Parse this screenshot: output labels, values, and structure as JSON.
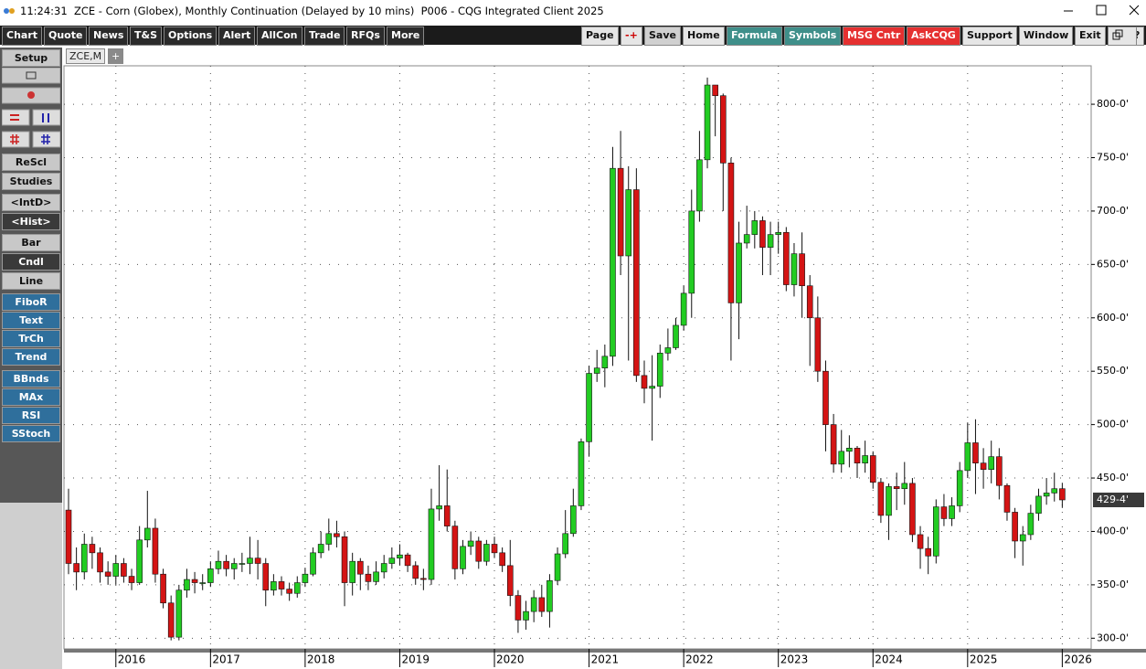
{
  "title_bar": {
    "title": "11:24:31  ZCE - Corn (Globex), Monthly Continuation (Delayed by 10 mins)  P006 - CQG Integrated Client 2025"
  },
  "toolbar": {
    "left": [
      "Chart",
      "Quote",
      "News",
      "T&S",
      "Options",
      "Alert",
      "AllCon",
      "Trade",
      "RFQs",
      "More"
    ],
    "right": [
      {
        "label": "Page",
        "style": "light"
      },
      {
        "label": "-+",
        "style": "light-red"
      },
      {
        "label": "Save",
        "style": "plain"
      },
      {
        "label": "Home",
        "style": "light"
      },
      {
        "label": "Formula",
        "style": "teal"
      },
      {
        "label": "Symbols",
        "style": "teal"
      },
      {
        "label": "MSG Cntr",
        "style": "alert"
      },
      {
        "label": "AskCQG",
        "style": "alert"
      },
      {
        "label": "Support",
        "style": "light"
      },
      {
        "label": "Window",
        "style": "light"
      },
      {
        "label": "Exit",
        "style": "light"
      },
      {
        "label": "?",
        "style": "light"
      }
    ]
  },
  "side_panel": {
    "setup": "Setup",
    "buttons": [
      {
        "label": "ReScl",
        "style": "gray"
      },
      {
        "label": "Studies",
        "style": "gray"
      },
      {
        "label": "<IntD>",
        "style": "gray"
      },
      {
        "label": "<Hist>",
        "style": "dark"
      },
      {
        "label": "Bar",
        "style": "gray"
      },
      {
        "label": "Cndl",
        "style": "dark"
      },
      {
        "label": "Line",
        "style": "gray"
      },
      {
        "label": "FiboR",
        "style": "blue"
      },
      {
        "label": "Text",
        "style": "blue"
      },
      {
        "label": "TrCh",
        "style": "blue"
      },
      {
        "label": "Trend",
        "style": "blue"
      },
      {
        "label": "BBnds",
        "style": "blue"
      },
      {
        "label": "MAx",
        "style": "blue"
      },
      {
        "label": "RSI",
        "style": "blue"
      },
      {
        "label": "SStoch",
        "style": "blue"
      }
    ]
  },
  "tabs": [
    "ZCE,M",
    "+"
  ],
  "chart_data": {
    "type": "candlestick",
    "up_color": "#22cc22",
    "down_color": "#d41414",
    "grid": true,
    "x": [
      "2015-07",
      "2015-08",
      "2015-09",
      "2015-10",
      "2015-11",
      "2015-12",
      "2016-01",
      "2016-02",
      "2016-03",
      "2016-04",
      "2016-05",
      "2016-06",
      "2016-07",
      "2016-08",
      "2016-09",
      "2016-10",
      "2016-11",
      "2016-12",
      "2017-01",
      "2017-02",
      "2017-03",
      "2017-04",
      "2017-05",
      "2017-06",
      "2017-07",
      "2017-08",
      "2017-09",
      "2017-10",
      "2017-11",
      "2017-12",
      "2018-01",
      "2018-02",
      "2018-03",
      "2018-04",
      "2018-05",
      "2018-06",
      "2018-07",
      "2018-08",
      "2018-09",
      "2018-10",
      "2018-11",
      "2018-12",
      "2019-01",
      "2019-02",
      "2019-03",
      "2019-04",
      "2019-05",
      "2019-06",
      "2019-07",
      "2019-08",
      "2019-09",
      "2019-10",
      "2019-11",
      "2019-12",
      "2020-01",
      "2020-02",
      "2020-03",
      "2020-04",
      "2020-05",
      "2020-06",
      "2020-07",
      "2020-08",
      "2020-09",
      "2020-10",
      "2020-11",
      "2020-12",
      "2021-01",
      "2021-02",
      "2021-03",
      "2021-04",
      "2021-05",
      "2021-06",
      "2021-07",
      "2021-08",
      "2021-09",
      "2021-10",
      "2021-11",
      "2021-12",
      "2022-01",
      "2022-02",
      "2022-03",
      "2022-04",
      "2022-05",
      "2022-06",
      "2022-07",
      "2022-08",
      "2022-09",
      "2022-10",
      "2022-11",
      "2022-12",
      "2023-01",
      "2023-02",
      "2023-03",
      "2023-04",
      "2023-05",
      "2023-06",
      "2023-07",
      "2023-08",
      "2023-09",
      "2023-10",
      "2023-11",
      "2023-12",
      "2024-01",
      "2024-02",
      "2024-03",
      "2024-04",
      "2024-05",
      "2024-06",
      "2024-07",
      "2024-08",
      "2024-09",
      "2024-10",
      "2024-11",
      "2024-12",
      "2025-01",
      "2025-02",
      "2025-03",
      "2025-04",
      "2025-05",
      "2025-06",
      "2025-07",
      "2025-08",
      "2025-09",
      "2025-10",
      "2025-11",
      "2025-12",
      "2026-01"
    ],
    "open": [
      420,
      370,
      362,
      388,
      380,
      362,
      358,
      370,
      358,
      352,
      392,
      403,
      360,
      333,
      301,
      345,
      355,
      352,
      352,
      365,
      372,
      365,
      370,
      370,
      375,
      370,
      345,
      353,
      346,
      342,
      352,
      360,
      380,
      388,
      398,
      395,
      352,
      372,
      360,
      353,
      362,
      370,
      375,
      378,
      368,
      356,
      355,
      421,
      424,
      405,
      365,
      386,
      391,
      372,
      388,
      380,
      368,
      340,
      317,
      325,
      338,
      325,
      354,
      379,
      398,
      424,
      484,
      548,
      553,
      564,
      740,
      658,
      720,
      546,
      534,
      536,
      567,
      572,
      593,
      623,
      700,
      748,
      818,
      808,
      745,
      614,
      670,
      678,
      691,
      666,
      678,
      680,
      631,
      660,
      630,
      600,
      550,
      500,
      463,
      475,
      478,
      464,
      471,
      446,
      415,
      442,
      440,
      445,
      397,
      384,
      377,
      423,
      412,
      424,
      457,
      483,
      464,
      458,
      470,
      443,
      418,
      391,
      397,
      417,
      433,
      436,
      440
    ],
    "high": [
      440,
      385,
      398,
      395,
      385,
      372,
      378,
      375,
      365,
      405,
      438,
      412,
      365,
      340,
      350,
      365,
      362,
      360,
      372,
      382,
      378,
      375,
      380,
      395,
      392,
      375,
      360,
      358,
      352,
      358,
      366,
      385,
      400,
      412,
      410,
      400,
      380,
      375,
      368,
      372,
      378,
      385,
      388,
      380,
      372,
      365,
      440,
      462,
      458,
      410,
      392,
      400,
      395,
      392,
      395,
      385,
      392,
      345,
      335,
      345,
      350,
      360,
      385,
      420,
      440,
      487,
      555,
      570,
      575,
      760,
      775,
      742,
      740,
      560,
      565,
      575,
      590,
      600,
      630,
      720,
      775,
      825,
      815,
      810,
      750,
      690,
      705,
      700,
      695,
      690,
      690,
      685,
      670,
      680,
      640,
      620,
      560,
      510,
      495,
      490,
      480,
      485,
      475,
      450,
      445,
      455,
      465,
      450,
      405,
      395,
      430,
      435,
      432,
      465,
      502,
      505,
      478,
      485,
      478,
      445,
      422,
      405,
      425,
      440,
      450,
      455,
      445
    ],
    "low": [
      360,
      345,
      355,
      365,
      352,
      350,
      350,
      352,
      345,
      350,
      385,
      352,
      328,
      298,
      298,
      338,
      342,
      345,
      348,
      360,
      358,
      355,
      362,
      360,
      355,
      330,
      340,
      340,
      335,
      338,
      348,
      358,
      375,
      382,
      385,
      330,
      340,
      345,
      345,
      350,
      356,
      365,
      368,
      362,
      350,
      345,
      350,
      410,
      400,
      355,
      360,
      378,
      365,
      368,
      375,
      362,
      330,
      305,
      308,
      315,
      320,
      310,
      350,
      375,
      395,
      420,
      470,
      540,
      535,
      555,
      640,
      560,
      540,
      520,
      485,
      525,
      560,
      570,
      588,
      600,
      690,
      740,
      770,
      700,
      560,
      580,
      665,
      665,
      640,
      640,
      660,
      625,
      620,
      600,
      555,
      540,
      475,
      455,
      455,
      460,
      450,
      455,
      440,
      408,
      392,
      420,
      425,
      390,
      365,
      360,
      370,
      405,
      405,
      418,
      450,
      435,
      440,
      445,
      430,
      410,
      375,
      368,
      392,
      410,
      425,
      428,
      422
    ],
    "close": [
      370,
      362,
      388,
      380,
      362,
      358,
      370,
      358,
      352,
      392,
      403,
      360,
      333,
      301,
      345,
      355,
      352,
      352,
      365,
      372,
      365,
      370,
      370,
      375,
      370,
      345,
      353,
      346,
      342,
      352,
      360,
      380,
      388,
      398,
      395,
      352,
      372,
      360,
      353,
      362,
      370,
      375,
      378,
      368,
      356,
      355,
      421,
      424,
      405,
      365,
      386,
      391,
      372,
      388,
      380,
      368,
      340,
      317,
      325,
      338,
      325,
      354,
      379,
      398,
      424,
      484,
      548,
      553,
      564,
      740,
      658,
      720,
      546,
      534,
      536,
      567,
      572,
      593,
      623,
      700,
      748,
      818,
      808,
      745,
      614,
      670,
      678,
      691,
      666,
      678,
      680,
      631,
      660,
      630,
      600,
      550,
      500,
      463,
      475,
      478,
      464,
      471,
      446,
      415,
      442,
      440,
      445,
      397,
      384,
      377,
      423,
      412,
      424,
      457,
      483,
      464,
      458,
      470,
      443,
      418,
      391,
      397,
      417,
      433,
      436,
      440,
      429.5
    ],
    "ylim": [
      290,
      836
    ],
    "yticks": [
      {
        "value": 300,
        "label": "300-0'"
      },
      {
        "value": 350,
        "label": "350-0'"
      },
      {
        "value": 400,
        "label": "400-0'"
      },
      {
        "value": 450,
        "label": "450-0'"
      },
      {
        "value": 500,
        "label": "500-0'"
      },
      {
        "value": 550,
        "label": "550-0'"
      },
      {
        "value": 600,
        "label": "600-0'"
      },
      {
        "value": 650,
        "label": "650-0'"
      },
      {
        "value": 700,
        "label": "700-0'"
      },
      {
        "value": 750,
        "label": "750-0'"
      },
      {
        "value": 800,
        "label": "800-0'"
      }
    ],
    "xticks": [
      {
        "value": "2016-01",
        "label": "2016"
      },
      {
        "value": "2017-01",
        "label": "2017"
      },
      {
        "value": "2018-01",
        "label": "2018"
      },
      {
        "value": "2019-01",
        "label": "2019"
      },
      {
        "value": "2020-01",
        "label": "2020"
      },
      {
        "value": "2021-01",
        "label": "2021"
      },
      {
        "value": "2022-01",
        "label": "2022"
      },
      {
        "value": "2023-01",
        "label": "2023"
      },
      {
        "value": "2024-01",
        "label": "2024"
      },
      {
        "value": "2025-01",
        "label": "2025"
      },
      {
        "value": "2026-01",
        "label": "2026"
      }
    ],
    "last_price": {
      "value": 429.5,
      "label": "429-4'"
    }
  }
}
